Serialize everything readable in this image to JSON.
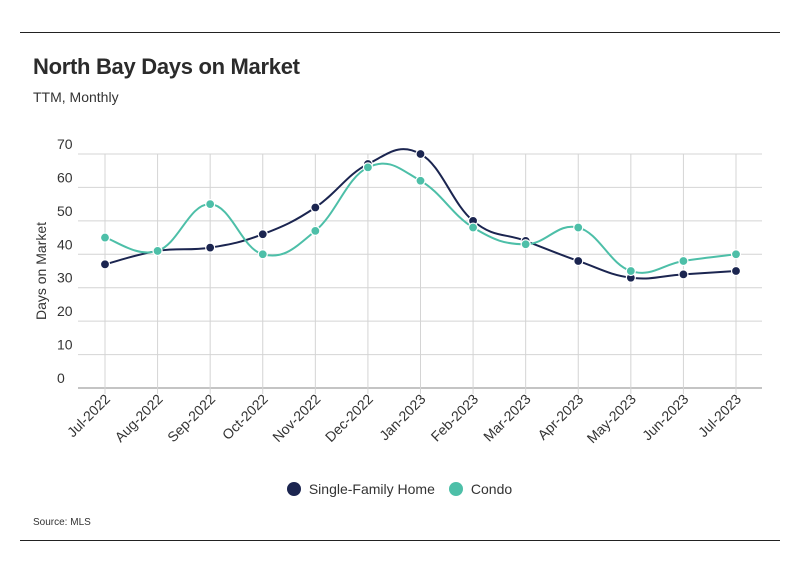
{
  "title": "North Bay Days on Market",
  "subtitle": "TTM, Monthly",
  "source": "Source:  MLS",
  "chart_data": {
    "type": "line",
    "title": "North Bay Days on Market",
    "subtitle": "TTM, Monthly",
    "xlabel": "",
    "ylabel": "Days on Market",
    "ylim": [
      0,
      70
    ],
    "yticks": [
      0,
      10,
      20,
      30,
      40,
      50,
      60,
      70
    ],
    "grid": true,
    "legend_position": "bottom",
    "categories": [
      "Jul-2022",
      "Aug-2022",
      "Sep-2022",
      "Oct-2022",
      "Nov-2022",
      "Dec-2022",
      "Jan-2023",
      "Feb-2023",
      "Mar-2023",
      "Apr-2023",
      "May-2023",
      "Jun-2023",
      "Jul-2023"
    ],
    "series": [
      {
        "name": "Single-Family Home",
        "color": "#1b2550",
        "values": [
          37,
          41,
          42,
          46,
          54,
          67,
          70,
          50,
          44,
          38,
          33,
          34,
          35
        ]
      },
      {
        "name": "Condo",
        "color": "#4dbfa8",
        "values": [
          45,
          41,
          55,
          40,
          47,
          66,
          62,
          48,
          43,
          48,
          35,
          38,
          40
        ]
      }
    ]
  }
}
